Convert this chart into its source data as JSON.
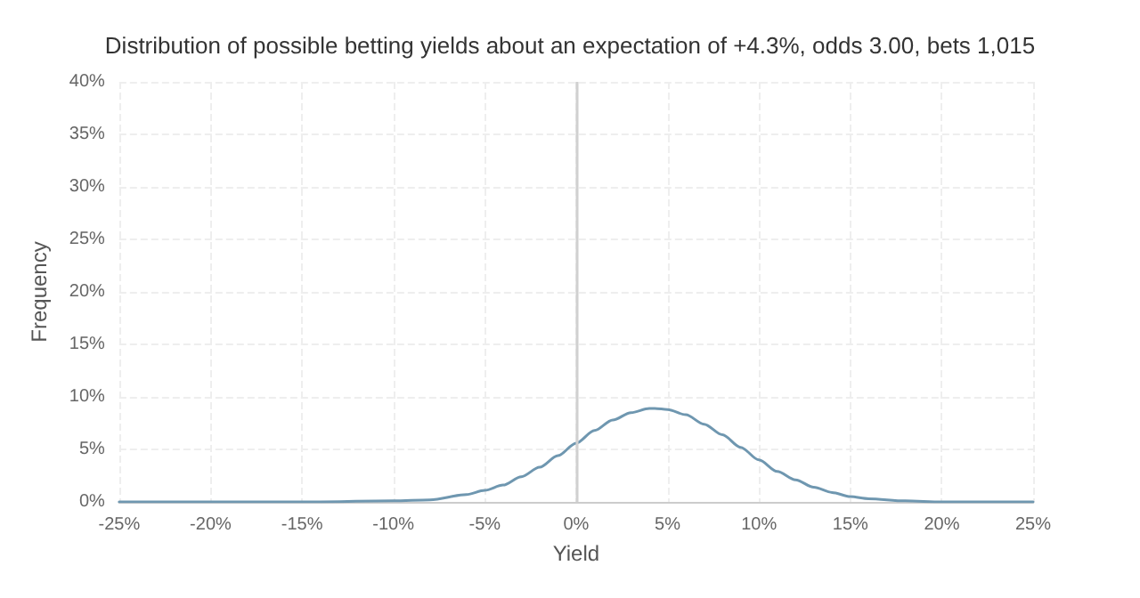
{
  "chart_data": {
    "type": "line",
    "title": "Distribution of possible betting yields about an expectation of +4.3%, odds 3.00, bets 1,015",
    "xlabel": "Yield",
    "ylabel": "Frequency",
    "x": [
      -25,
      -15,
      -10,
      -8,
      -6,
      -5,
      -4,
      -3,
      -2,
      -1,
      0,
      1,
      2,
      3,
      4,
      4.3,
      5,
      6,
      7,
      8,
      9,
      10,
      11,
      12,
      13,
      14,
      15,
      16,
      18,
      20,
      25
    ],
    "series": [
      {
        "color": "#6f97b0",
        "values": [
          0,
          0,
          0.1,
          0.2,
          0.7,
          1.1,
          1.6,
          2.4,
          3.3,
          4.4,
          5.6,
          6.8,
          7.8,
          8.5,
          8.9,
          8.9,
          8.8,
          8.3,
          7.4,
          6.4,
          5.2,
          4.0,
          2.9,
          2.1,
          1.4,
          0.9,
          0.5,
          0.3,
          0.1,
          0,
          0
        ]
      }
    ],
    "xlim": [
      -25,
      25
    ],
    "xticks": [
      {
        "value": -25,
        "label": "-25%"
      },
      {
        "value": -20,
        "label": "-20%"
      },
      {
        "value": -15,
        "label": "-15%"
      },
      {
        "value": -10,
        "label": "-10%"
      },
      {
        "value": -5,
        "label": "-5%"
      },
      {
        "value": 0,
        "label": "0%"
      },
      {
        "value": 5,
        "label": "5%"
      },
      {
        "value": 10,
        "label": "10%"
      },
      {
        "value": 15,
        "label": "15%"
      },
      {
        "value": 20,
        "label": "20%"
      },
      {
        "value": 25,
        "label": "25%"
      }
    ],
    "ylim": [
      0,
      40
    ],
    "yticks": [
      {
        "value": 0,
        "label": "0%"
      },
      {
        "value": 5,
        "label": "5%"
      },
      {
        "value": 10,
        "label": "10%"
      },
      {
        "value": 15,
        "label": "15%"
      },
      {
        "value": 20,
        "label": "20%"
      },
      {
        "value": 25,
        "label": "25%"
      },
      {
        "value": 30,
        "label": "30%"
      },
      {
        "value": 35,
        "label": "35%"
      },
      {
        "value": 40,
        "label": "40%"
      }
    ],
    "ref_lines": [
      {
        "axis": "x",
        "value": 0,
        "color": "#d0d0d0"
      }
    ],
    "grid": true,
    "marker": "none",
    "line_style": "solid"
  }
}
